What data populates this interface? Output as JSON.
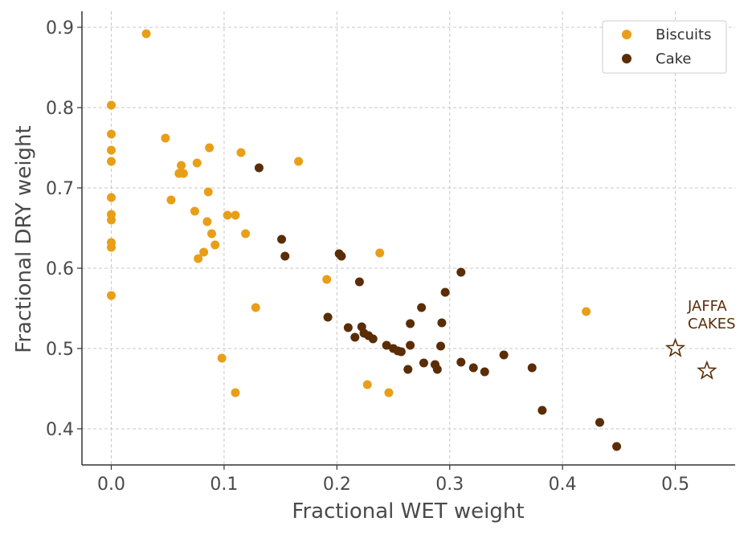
{
  "chart_data": {
    "type": "scatter",
    "xlabel": "Fractional WET weight",
    "ylabel": "Fractional DRY weight",
    "xlim": [
      -0.026,
      0.553
    ],
    "ylim": [
      0.355,
      0.92
    ],
    "x_ticks": [
      0.0,
      0.1,
      0.2,
      0.3,
      0.4,
      0.5
    ],
    "x_tick_labels": [
      "0.0",
      "0.1",
      "0.2",
      "0.3",
      "0.4",
      "0.5"
    ],
    "y_ticks": [
      0.4,
      0.5,
      0.6,
      0.7,
      0.8,
      0.9
    ],
    "y_tick_labels": [
      "0.4",
      "0.5",
      "0.6",
      "0.7",
      "0.8",
      "0.9"
    ],
    "grid": true,
    "legend_position": "top-right",
    "series": [
      {
        "name": "Biscuits",
        "color": "#E89F17",
        "points": [
          [
            0.031,
            0.892
          ],
          [
            0.0,
            0.803
          ],
          [
            0.0,
            0.767
          ],
          [
            0.0,
            0.747
          ],
          [
            0.0,
            0.733
          ],
          [
            0.0,
            0.688
          ],
          [
            0.0,
            0.667
          ],
          [
            0.0,
            0.66
          ],
          [
            0.0,
            0.632
          ],
          [
            0.0,
            0.626
          ],
          [
            0.0,
            0.566
          ],
          [
            0.048,
            0.762
          ],
          [
            0.053,
            0.685
          ],
          [
            0.06,
            0.718
          ],
          [
            0.062,
            0.728
          ],
          [
            0.064,
            0.718
          ],
          [
            0.074,
            0.671
          ],
          [
            0.076,
            0.731
          ],
          [
            0.077,
            0.612
          ],
          [
            0.082,
            0.62
          ],
          [
            0.085,
            0.658
          ],
          [
            0.087,
            0.75
          ],
          [
            0.086,
            0.695
          ],
          [
            0.089,
            0.643
          ],
          [
            0.092,
            0.629
          ],
          [
            0.098,
            0.488
          ],
          [
            0.103,
            0.666
          ],
          [
            0.11,
            0.666
          ],
          [
            0.11,
            0.445
          ],
          [
            0.115,
            0.744
          ],
          [
            0.119,
            0.643
          ],
          [
            0.128,
            0.551
          ],
          [
            0.166,
            0.733
          ],
          [
            0.191,
            0.586
          ],
          [
            0.227,
            0.455
          ],
          [
            0.238,
            0.619
          ],
          [
            0.246,
            0.445
          ],
          [
            0.421,
            0.546
          ]
        ]
      },
      {
        "name": "Cake",
        "color": "#5A2D06",
        "points": [
          [
            0.131,
            0.725
          ],
          [
            0.151,
            0.636
          ],
          [
            0.154,
            0.615
          ],
          [
            0.192,
            0.539
          ],
          [
            0.202,
            0.618
          ],
          [
            0.204,
            0.615
          ],
          [
            0.21,
            0.526
          ],
          [
            0.216,
            0.514
          ],
          [
            0.22,
            0.583
          ],
          [
            0.222,
            0.527
          ],
          [
            0.224,
            0.519
          ],
          [
            0.228,
            0.516
          ],
          [
            0.232,
            0.512
          ],
          [
            0.244,
            0.504
          ],
          [
            0.25,
            0.5
          ],
          [
            0.254,
            0.497
          ],
          [
            0.257,
            0.496
          ],
          [
            0.263,
            0.474
          ],
          [
            0.265,
            0.531
          ],
          [
            0.265,
            0.504
          ],
          [
            0.275,
            0.551
          ],
          [
            0.277,
            0.482
          ],
          [
            0.287,
            0.48
          ],
          [
            0.289,
            0.474
          ],
          [
            0.292,
            0.503
          ],
          [
            0.293,
            0.532
          ],
          [
            0.296,
            0.57
          ],
          [
            0.31,
            0.595
          ],
          [
            0.31,
            0.483
          ],
          [
            0.321,
            0.476
          ],
          [
            0.331,
            0.471
          ],
          [
            0.348,
            0.492
          ],
          [
            0.373,
            0.476
          ],
          [
            0.382,
            0.423
          ],
          [
            0.433,
            0.408
          ],
          [
            0.448,
            0.378
          ]
        ]
      },
      {
        "name": "",
        "marker": "star",
        "color": "#5A2D06",
        "points": [
          [
            0.5,
            0.5
          ],
          [
            0.528,
            0.472
          ]
        ]
      }
    ],
    "annotations": [
      {
        "lines": [
          "JAFFA",
          "CAKES"
        ],
        "x": 0.511,
        "y": 0.553,
        "color": "#5A2D06"
      }
    ]
  }
}
